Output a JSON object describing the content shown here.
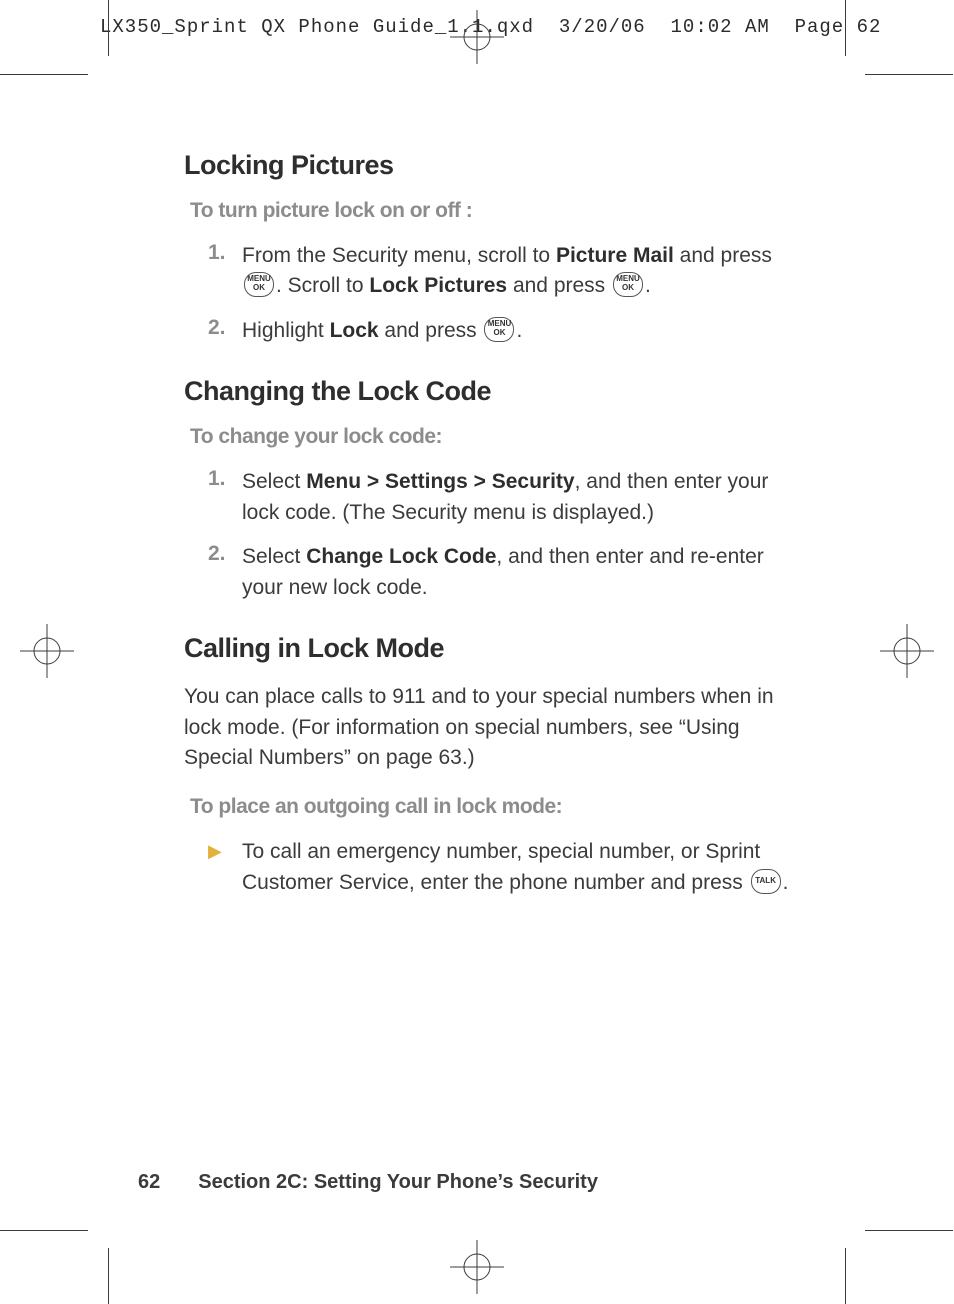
{
  "header": {
    "filename": "LX350_Sprint QX Phone Guide_1.1.qxd",
    "date": "3/20/06",
    "time": "10:02 AM",
    "page_label": "Page 62"
  },
  "colors": {
    "text": "#3b3b3b",
    "heading": "#2e2e2e",
    "muted": "#8c8c8c",
    "arrow": "#e3b23c",
    "background": "#ffffff",
    "crop": "#3b3b3b"
  },
  "fontsizes": {
    "heading": 27,
    "subhead": 21,
    "body": 21,
    "header_mono": 19,
    "footer": 20
  },
  "sections": [
    {
      "title": "Locking Pictures",
      "subhead": "To turn picture lock on or off :",
      "steps": [
        {
          "num": "1.",
          "parts": [
            {
              "t": "text",
              "v": "From the Security menu, scroll to "
            },
            {
              "t": "bold",
              "v": "Picture Mail"
            },
            {
              "t": "text",
              "v": " and press "
            },
            {
              "t": "key",
              "v": "MENU OK"
            },
            {
              "t": "text",
              "v": ". Scroll to "
            },
            {
              "t": "bold",
              "v": "Lock Pictures"
            },
            {
              "t": "text",
              "v": " and press "
            },
            {
              "t": "key",
              "v": "MENU OK"
            },
            {
              "t": "text",
              "v": "."
            }
          ]
        },
        {
          "num": "2.",
          "parts": [
            {
              "t": "text",
              "v": "Highlight "
            },
            {
              "t": "bold",
              "v": "Lock"
            },
            {
              "t": "text",
              "v": " and press "
            },
            {
              "t": "key",
              "v": "MENU OK"
            },
            {
              "t": "text",
              "v": "."
            }
          ]
        }
      ]
    },
    {
      "title": "Changing the Lock Code",
      "subhead": "To change your lock code:",
      "steps": [
        {
          "num": "1.",
          "parts": [
            {
              "t": "text",
              "v": "Select "
            },
            {
              "t": "bold",
              "v": "Menu > Settings > Security"
            },
            {
              "t": "text",
              "v": ", and then enter your lock code. (The Security menu is displayed.)"
            }
          ]
        },
        {
          "num": "2.",
          "parts": [
            {
              "t": "text",
              "v": "Select "
            },
            {
              "t": "bold",
              "v": "Change Lock Code"
            },
            {
              "t": "text",
              "v": ", and then enter and re-enter your new lock code."
            }
          ]
        }
      ]
    },
    {
      "title": "Calling in Lock Mode",
      "para": "You can place calls to 911 and to your special numbers when in lock mode. (For information on special numbers, see “Using Special Numbers” on page 63.)",
      "subhead": "To place an outgoing call in lock mode:",
      "bullets": [
        {
          "parts": [
            {
              "t": "text",
              "v": "To call an emergency number, special number, or Sprint Customer Service, enter the phone number and press "
            },
            {
              "t": "key",
              "v": "TALK"
            },
            {
              "t": "text",
              "v": "."
            }
          ]
        }
      ]
    }
  ],
  "footer": {
    "page_number": "62",
    "text": "Section 2C: Setting Your Phone’s Security"
  },
  "icons": {
    "menu_ok": {
      "line1": "MENU",
      "line2": "OK"
    },
    "talk": {
      "line1": "TALK",
      "line2": ""
    }
  }
}
